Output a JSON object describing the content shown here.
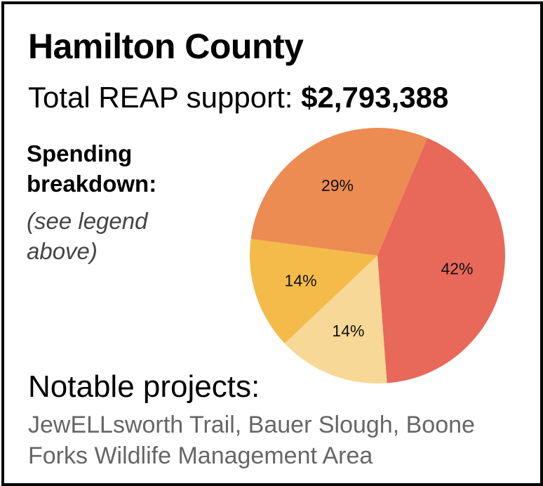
{
  "card": {
    "title": "Hamilton County",
    "total_label": "Total REAP support:",
    "total_amount": "$2,793,388",
    "spending_title": "Spending breakdown:",
    "spending_note": "(see legend above)",
    "notable_title": "Notable projects:",
    "notable_list": "JewELLsworth Trail, Bauer Slough, Boone Forks Wildlife Management Area"
  },
  "chart_data": {
    "type": "pie",
    "title": "",
    "slices": [
      {
        "value": 42,
        "label": "42%",
        "color": "#e8685a"
      },
      {
        "value": 14,
        "label": "14%",
        "color": "#f7d896"
      },
      {
        "value": 14,
        "label": "14%",
        "color": "#f4bb4a"
      },
      {
        "value": 29,
        "label": "29%",
        "color": "#ec8b52"
      }
    ],
    "start_angle_deg": 23,
    "direction": "clockwise"
  }
}
